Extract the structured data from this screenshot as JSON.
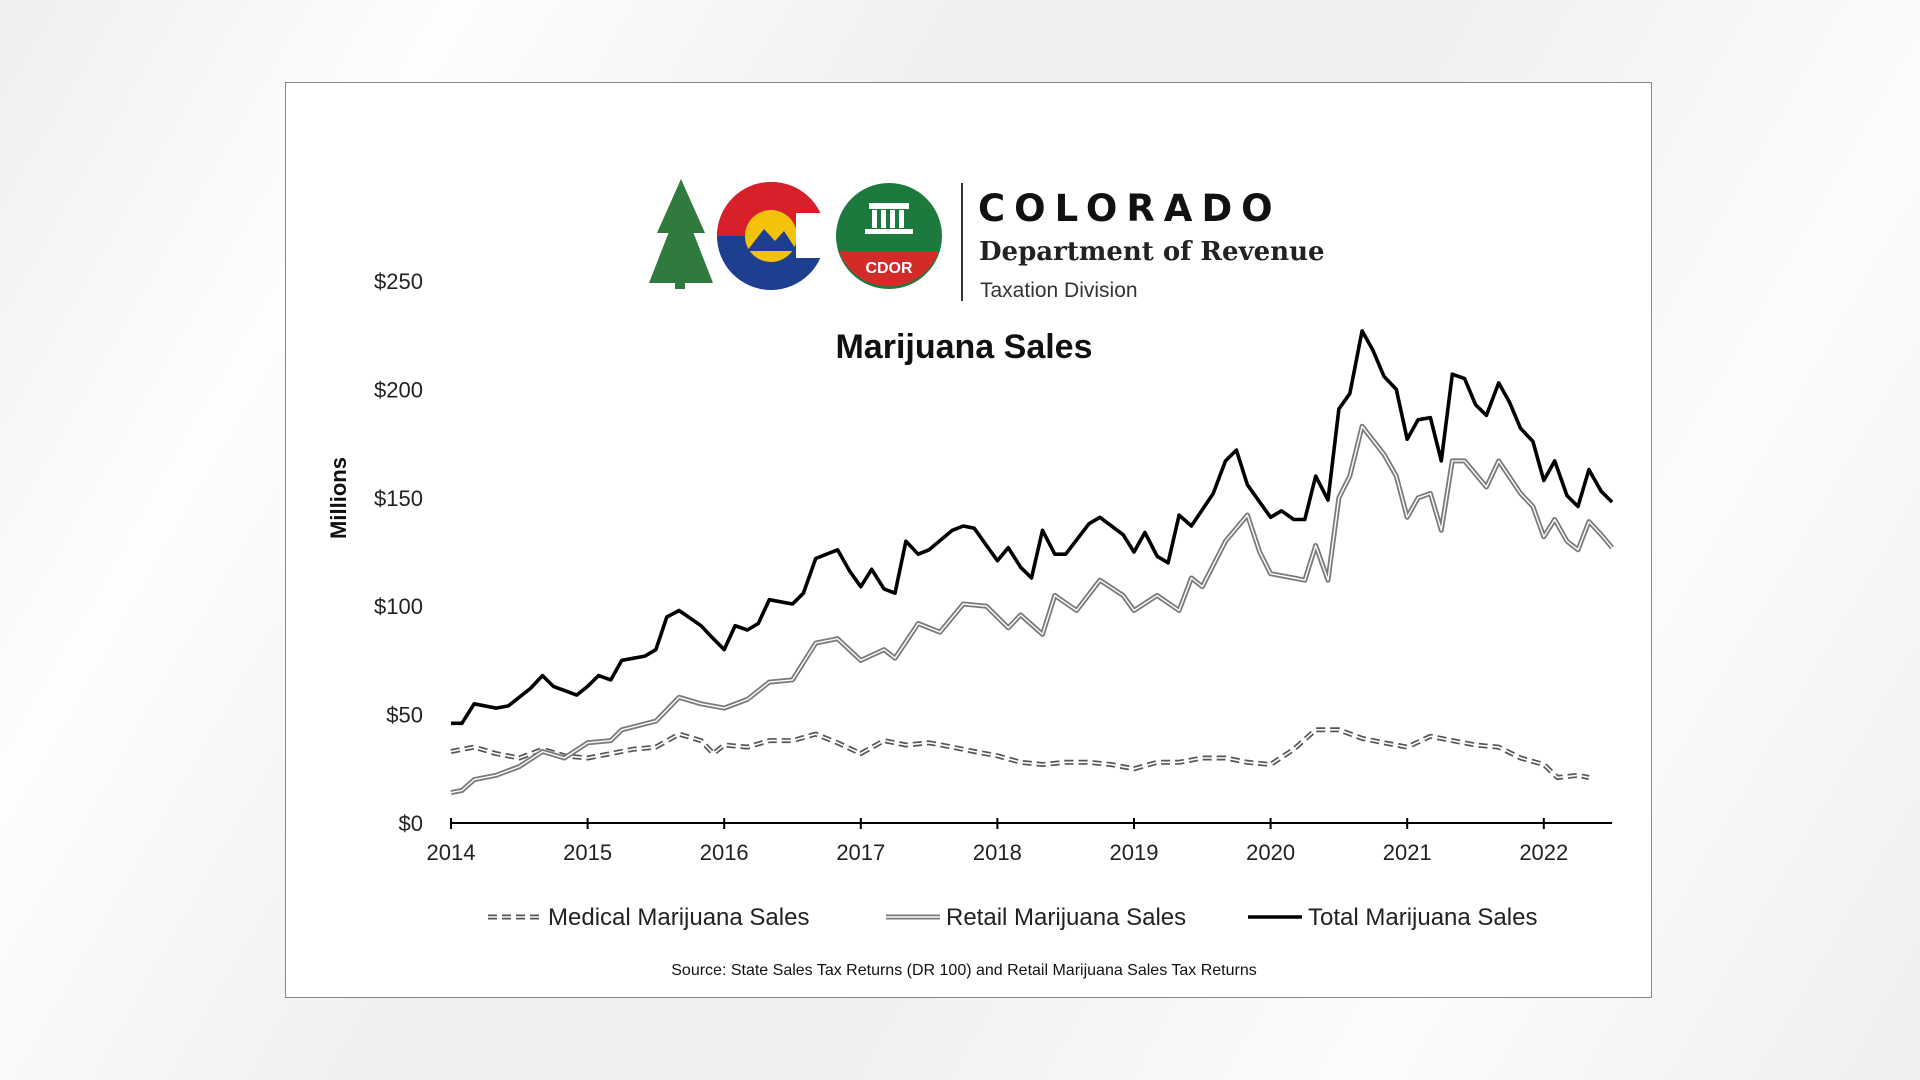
{
  "header": {
    "state_name": "COLORADO",
    "department": "Department of Revenue",
    "division": "Taxation Division",
    "badge_text": "CDOR",
    "logo_icon": "colorado-c-logo-icon",
    "seal_icon": "cdor-seal-icon"
  },
  "colors": {
    "logo_green": "#2f7a3c",
    "logo_red": "#d8202a",
    "logo_blue": "#1e3f8f",
    "logo_gold": "#f4c20d",
    "seal_green": "#1d7a3f",
    "seal_red": "#d32a2a",
    "total": "#000000",
    "retail": "#7a7a7a",
    "medical": "#555555"
  },
  "chart_data": {
    "type": "line",
    "title": "Marijuana Sales",
    "ylabel": "Millions",
    "xlabel": "",
    "ylim": [
      0,
      250
    ],
    "xlim": [
      2014,
      2022.35
    ],
    "y_ticks": [
      0,
      50,
      100,
      150,
      200,
      250
    ],
    "y_tick_labels": [
      "$0",
      "$50",
      "$100",
      "$150",
      "$200",
      "$250"
    ],
    "x_ticks": [
      2014,
      2015,
      2016,
      2017,
      2018,
      2019,
      2020,
      2021,
      2022
    ],
    "x_tick_labels": [
      "2014",
      "2015",
      "2016",
      "2017",
      "2018",
      "2019",
      "2020",
      "2021",
      "2022"
    ],
    "grid": false,
    "legend_position": "bottom",
    "source": "Source: State Sales Tax Returns (DR 100) and Retail Marijuana  Sales Tax Returns",
    "series": [
      {
        "name": "Medical Marijuana Sales",
        "style": "dashed",
        "points": [
          [
            2014.0,
            33
          ],
          [
            2014.17,
            35
          ],
          [
            2014.33,
            32
          ],
          [
            2014.5,
            30
          ],
          [
            2014.67,
            34
          ],
          [
            2014.83,
            31
          ],
          [
            2015.0,
            30
          ],
          [
            2015.17,
            32
          ],
          [
            2015.33,
            34
          ],
          [
            2015.5,
            35
          ],
          [
            2015.67,
            41
          ],
          [
            2015.83,
            38
          ],
          [
            2015.92,
            32
          ],
          [
            2016.0,
            36
          ],
          [
            2016.17,
            35
          ],
          [
            2016.33,
            38
          ],
          [
            2016.5,
            38
          ],
          [
            2016.67,
            41
          ],
          [
            2016.83,
            37
          ],
          [
            2017.0,
            32
          ],
          [
            2017.17,
            38
          ],
          [
            2017.33,
            36
          ],
          [
            2017.5,
            37
          ],
          [
            2017.67,
            35
          ],
          [
            2017.83,
            33
          ],
          [
            2018.0,
            31
          ],
          [
            2018.17,
            28
          ],
          [
            2018.33,
            27
          ],
          [
            2018.5,
            28
          ],
          [
            2018.67,
            28
          ],
          [
            2018.83,
            27
          ],
          [
            2019.0,
            25
          ],
          [
            2019.17,
            28
          ],
          [
            2019.33,
            28
          ],
          [
            2019.5,
            30
          ],
          [
            2019.67,
            30
          ],
          [
            2019.83,
            28
          ],
          [
            2020.0,
            27
          ],
          [
            2020.17,
            34
          ],
          [
            2020.33,
            43
          ],
          [
            2020.5,
            43
          ],
          [
            2020.67,
            39
          ],
          [
            2020.83,
            37
          ],
          [
            2021.0,
            35
          ],
          [
            2021.17,
            40
          ],
          [
            2021.33,
            38
          ],
          [
            2021.5,
            36
          ],
          [
            2021.67,
            35
          ],
          [
            2021.83,
            30
          ],
          [
            2022.0,
            27
          ],
          [
            2022.1,
            21
          ],
          [
            2022.25,
            22
          ],
          [
            2022.33,
            21
          ]
        ]
      },
      {
        "name": "Retail Marijuana Sales",
        "style": "double",
        "points": [
          [
            2014.0,
            14
          ],
          [
            2014.08,
            15
          ],
          [
            2014.17,
            20
          ],
          [
            2014.33,
            22
          ],
          [
            2014.5,
            26
          ],
          [
            2014.67,
            33
          ],
          [
            2014.83,
            30
          ],
          [
            2015.0,
            37
          ],
          [
            2015.17,
            38
          ],
          [
            2015.25,
            43
          ],
          [
            2015.5,
            47
          ],
          [
            2015.67,
            58
          ],
          [
            2015.83,
            55
          ],
          [
            2016.0,
            53
          ],
          [
            2016.17,
            57
          ],
          [
            2016.33,
            65
          ],
          [
            2016.5,
            66
          ],
          [
            2016.67,
            83
          ],
          [
            2016.83,
            85
          ],
          [
            2017.0,
            75
          ],
          [
            2017.17,
            80
          ],
          [
            2017.25,
            76
          ],
          [
            2017.42,
            92
          ],
          [
            2017.58,
            88
          ],
          [
            2017.75,
            101
          ],
          [
            2017.92,
            100
          ],
          [
            2018.08,
            90
          ],
          [
            2018.17,
            96
          ],
          [
            2018.33,
            87
          ],
          [
            2018.42,
            105
          ],
          [
            2018.58,
            98
          ],
          [
            2018.75,
            112
          ],
          [
            2018.92,
            105
          ],
          [
            2019.0,
            98
          ],
          [
            2019.17,
            105
          ],
          [
            2019.33,
            98
          ],
          [
            2019.42,
            113
          ],
          [
            2019.5,
            109
          ],
          [
            2019.67,
            130
          ],
          [
            2019.83,
            142
          ],
          [
            2019.92,
            125
          ],
          [
            2020.0,
            115
          ],
          [
            2020.17,
            113
          ],
          [
            2020.25,
            112
          ],
          [
            2020.33,
            128
          ],
          [
            2020.42,
            112
          ],
          [
            2020.5,
            150
          ],
          [
            2020.58,
            160
          ],
          [
            2020.67,
            183
          ],
          [
            2020.83,
            170
          ],
          [
            2020.92,
            160
          ],
          [
            2021.0,
            141
          ],
          [
            2021.08,
            150
          ],
          [
            2021.17,
            152
          ],
          [
            2021.25,
            135
          ],
          [
            2021.33,
            167
          ],
          [
            2021.42,
            167
          ],
          [
            2021.58,
            155
          ],
          [
            2021.67,
            167
          ],
          [
            2021.83,
            152
          ],
          [
            2021.92,
            146
          ],
          [
            2022.0,
            132
          ],
          [
            2022.08,
            140
          ],
          [
            2022.17,
            130
          ],
          [
            2022.25,
            126
          ],
          [
            2022.33,
            139
          ],
          [
            2022.42,
            133
          ],
          [
            2022.5,
            127
          ]
        ]
      },
      {
        "name": "Total Marijuana Sales",
        "style": "solid",
        "points": [
          [
            2014.0,
            46
          ],
          [
            2014.08,
            46
          ],
          [
            2014.17,
            55
          ],
          [
            2014.33,
            53
          ],
          [
            2014.42,
            54
          ],
          [
            2014.58,
            62
          ],
          [
            2014.67,
            68
          ],
          [
            2014.75,
            63
          ],
          [
            2014.92,
            59
          ],
          [
            2015.0,
            63
          ],
          [
            2015.08,
            68
          ],
          [
            2015.17,
            66
          ],
          [
            2015.25,
            75
          ],
          [
            2015.42,
            77
          ],
          [
            2015.5,
            80
          ],
          [
            2015.58,
            95
          ],
          [
            2015.67,
            98
          ],
          [
            2015.83,
            91
          ],
          [
            2015.92,
            85
          ],
          [
            2016.0,
            80
          ],
          [
            2016.08,
            91
          ],
          [
            2016.17,
            89
          ],
          [
            2016.25,
            92
          ],
          [
            2016.33,
            103
          ],
          [
            2016.5,
            101
          ],
          [
            2016.58,
            106
          ],
          [
            2016.67,
            122
          ],
          [
            2016.83,
            126
          ],
          [
            2016.92,
            116
          ],
          [
            2017.0,
            109
          ],
          [
            2017.08,
            117
          ],
          [
            2017.17,
            108
          ],
          [
            2017.25,
            106
          ],
          [
            2017.33,
            130
          ],
          [
            2017.42,
            124
          ],
          [
            2017.5,
            126
          ],
          [
            2017.67,
            135
          ],
          [
            2017.75,
            137
          ],
          [
            2017.83,
            136
          ],
          [
            2017.92,
            128
          ],
          [
            2018.0,
            121
          ],
          [
            2018.08,
            127
          ],
          [
            2018.17,
            118
          ],
          [
            2018.25,
            113
          ],
          [
            2018.33,
            135
          ],
          [
            2018.42,
            124
          ],
          [
            2018.5,
            124
          ],
          [
            2018.67,
            138
          ],
          [
            2018.75,
            141
          ],
          [
            2018.92,
            133
          ],
          [
            2019.0,
            125
          ],
          [
            2019.08,
            134
          ],
          [
            2019.17,
            123
          ],
          [
            2019.25,
            120
          ],
          [
            2019.33,
            142
          ],
          [
            2019.42,
            137
          ],
          [
            2019.58,
            152
          ],
          [
            2019.67,
            167
          ],
          [
            2019.75,
            172
          ],
          [
            2019.83,
            156
          ],
          [
            2019.92,
            148
          ],
          [
            2020.0,
            141
          ],
          [
            2020.08,
            144
          ],
          [
            2020.17,
            140
          ],
          [
            2020.25,
            140
          ],
          [
            2020.33,
            160
          ],
          [
            2020.42,
            149
          ],
          [
            2020.5,
            191
          ],
          [
            2020.58,
            198
          ],
          [
            2020.67,
            227
          ],
          [
            2020.75,
            218
          ],
          [
            2020.83,
            206
          ],
          [
            2020.92,
            200
          ],
          [
            2021.0,
            177
          ],
          [
            2021.08,
            186
          ],
          [
            2021.17,
            187
          ],
          [
            2021.25,
            167
          ],
          [
            2021.33,
            207
          ],
          [
            2021.42,
            205
          ],
          [
            2021.5,
            193
          ],
          [
            2021.58,
            188
          ],
          [
            2021.67,
            203
          ],
          [
            2021.75,
            194
          ],
          [
            2021.83,
            182
          ],
          [
            2021.92,
            176
          ],
          [
            2022.0,
            158
          ],
          [
            2022.08,
            167
          ],
          [
            2022.17,
            151
          ],
          [
            2022.25,
            146
          ],
          [
            2022.33,
            163
          ],
          [
            2022.42,
            153
          ],
          [
            2022.5,
            148
          ]
        ]
      }
    ]
  }
}
